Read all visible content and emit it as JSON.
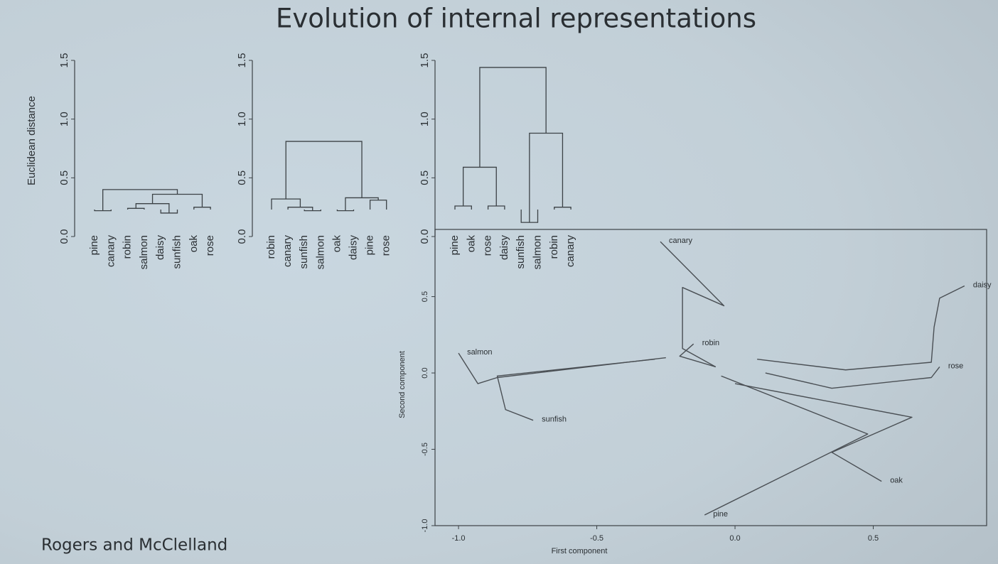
{
  "title": "Evolution of internal representations",
  "credit": "Rogers and McClelland",
  "chart_data": [
    {
      "type": "dendrogram",
      "ylabel": "Euclidean distance",
      "ylim": [
        0,
        1.5
      ],
      "yticks": [
        {
          "value": 0,
          "label": "0.0"
        },
        {
          "value": 0.5,
          "label": "0.5"
        },
        {
          "value": 1,
          "label": "1.0"
        },
        {
          "value": 1.5,
          "label": "1.5"
        }
      ],
      "tree": {
        "height": 0.4,
        "children": [
          {
            "height": 0.22,
            "children": [
              "pine",
              "canary"
            ]
          },
          {
            "height": 0.36,
            "children": [
              {
                "height": 0.28,
                "children": [
                  {
                    "height": 0.24,
                    "children": [
                      "robin",
                      "salmon"
                    ]
                  },
                  {
                    "height": 0.2,
                    "children": [
                      "daisy",
                      "sunfish"
                    ]
                  }
                ]
              },
              {
                "height": 0.25,
                "children": [
                  "oak",
                  "rose"
                ]
              }
            ]
          }
        ]
      }
    },
    {
      "type": "dendrogram",
      "ylim": [
        0,
        1.5
      ],
      "yticks": [
        {
          "value": 0,
          "label": "0.0"
        },
        {
          "value": 0.5,
          "label": "0.5"
        },
        {
          "value": 1,
          "label": "1.0"
        },
        {
          "value": 1.5,
          "label": "1.5"
        }
      ],
      "tree": {
        "height": 0.81,
        "children": [
          {
            "height": 0.32,
            "children": [
              "robin",
              {
                "height": 0.25,
                "children": [
                  "canary",
                  {
                    "height": 0.22,
                    "children": [
                      "sunfish",
                      "salmon"
                    ]
                  }
                ]
              }
            ]
          },
          {
            "height": 0.33,
            "children": [
              {
                "height": 0.22,
                "children": [
                  "oak",
                  "daisy"
                ]
              },
              {
                "height": 0.31,
                "children": [
                  "pine",
                  "rose"
                ]
              }
            ]
          }
        ]
      }
    },
    {
      "type": "dendrogram",
      "ylim": [
        0,
        1.5
      ],
      "yticks": [
        {
          "value": 0,
          "label": "0.0"
        },
        {
          "value": 0.5,
          "label": "0.5"
        },
        {
          "value": 1,
          "label": "1.0"
        },
        {
          "value": 1.5,
          "label": "1.5"
        }
      ],
      "tree": {
        "height": 1.44,
        "children": [
          {
            "height": 0.59,
            "children": [
              {
                "height": 0.26,
                "children": [
                  "pine",
                  "oak"
                ]
              },
              {
                "height": 0.26,
                "children": [
                  "rose",
                  "daisy"
                ]
              }
            ]
          },
          {
            "height": 0.88,
            "children": [
              {
                "height": 0.12,
                "children": [
                  "sunfish",
                  "salmon"
                ]
              },
              {
                "height": 0.25,
                "children": [
                  "robin",
                  "canary"
                ]
              }
            ]
          }
        ]
      }
    },
    {
      "type": "line",
      "xlabel": "First component",
      "ylabel": "Second component",
      "xlim": [
        -1.085,
        0.91
      ],
      "ylim": [
        -1.0,
        0.94
      ],
      "xticks": [
        {
          "value": -1,
          "label": "-1.0"
        },
        {
          "value": -0.5,
          "label": "-0.5"
        },
        {
          "value": 0,
          "label": "0.0"
        },
        {
          "value": 0.5,
          "label": "0.5"
        }
      ],
      "yticks": [
        {
          "value": -1,
          "label": "-1.0"
        },
        {
          "value": -0.5,
          "label": "-0.5"
        },
        {
          "value": 0,
          "label": "0.0"
        },
        {
          "value": 0.5,
          "label": "0.5"
        }
      ],
      "series": [
        {
          "name": "canary",
          "color": "#4a4f54",
          "x": [
            -0.07,
            -0.19,
            -0.19,
            -0.04,
            -0.27
          ],
          "values": [
            0.04,
            0.16,
            0.56,
            0.44,
            0.86
          ]
        },
        {
          "name": "robin",
          "color": "#4a4f54",
          "x": [
            -0.07,
            -0.2,
            -0.15
          ],
          "values": [
            0.04,
            0.11,
            0.19
          ]
        },
        {
          "name": "salmon",
          "color": "#4a4f54",
          "x": [
            -0.25,
            -0.86,
            -0.93,
            -1.0
          ],
          "values": [
            0.1,
            -0.03,
            -0.07,
            0.13
          ]
        },
        {
          "name": "sunfish",
          "color": "#4a4f54",
          "x": [
            -0.29,
            -0.86,
            -0.83,
            -0.73
          ],
          "values": [
            0.09,
            -0.02,
            -0.24,
            -0.31
          ]
        },
        {
          "name": "daisy",
          "color": "#4a4f54",
          "x": [
            0.08,
            0.4,
            0.71,
            0.72,
            0.74,
            0.83
          ],
          "values": [
            0.09,
            0.02,
            0.07,
            0.3,
            0.49,
            0.57
          ]
        },
        {
          "name": "rose",
          "color": "#4a4f54",
          "x": [
            0.11,
            0.35,
            0.71,
            0.74
          ],
          "values": [
            0.0,
            -0.1,
            -0.03,
            0.04
          ]
        },
        {
          "name": "oak",
          "color": "#4a4f54",
          "x": [
            0.0,
            0.64,
            0.35,
            0.53
          ],
          "values": [
            -0.07,
            -0.29,
            -0.52,
            -0.71
          ]
        },
        {
          "name": "pine",
          "color": "#4a4f54",
          "x": [
            -0.05,
            0.48,
            -0.11
          ],
          "values": [
            -0.02,
            -0.4,
            -0.93
          ]
        }
      ]
    }
  ]
}
